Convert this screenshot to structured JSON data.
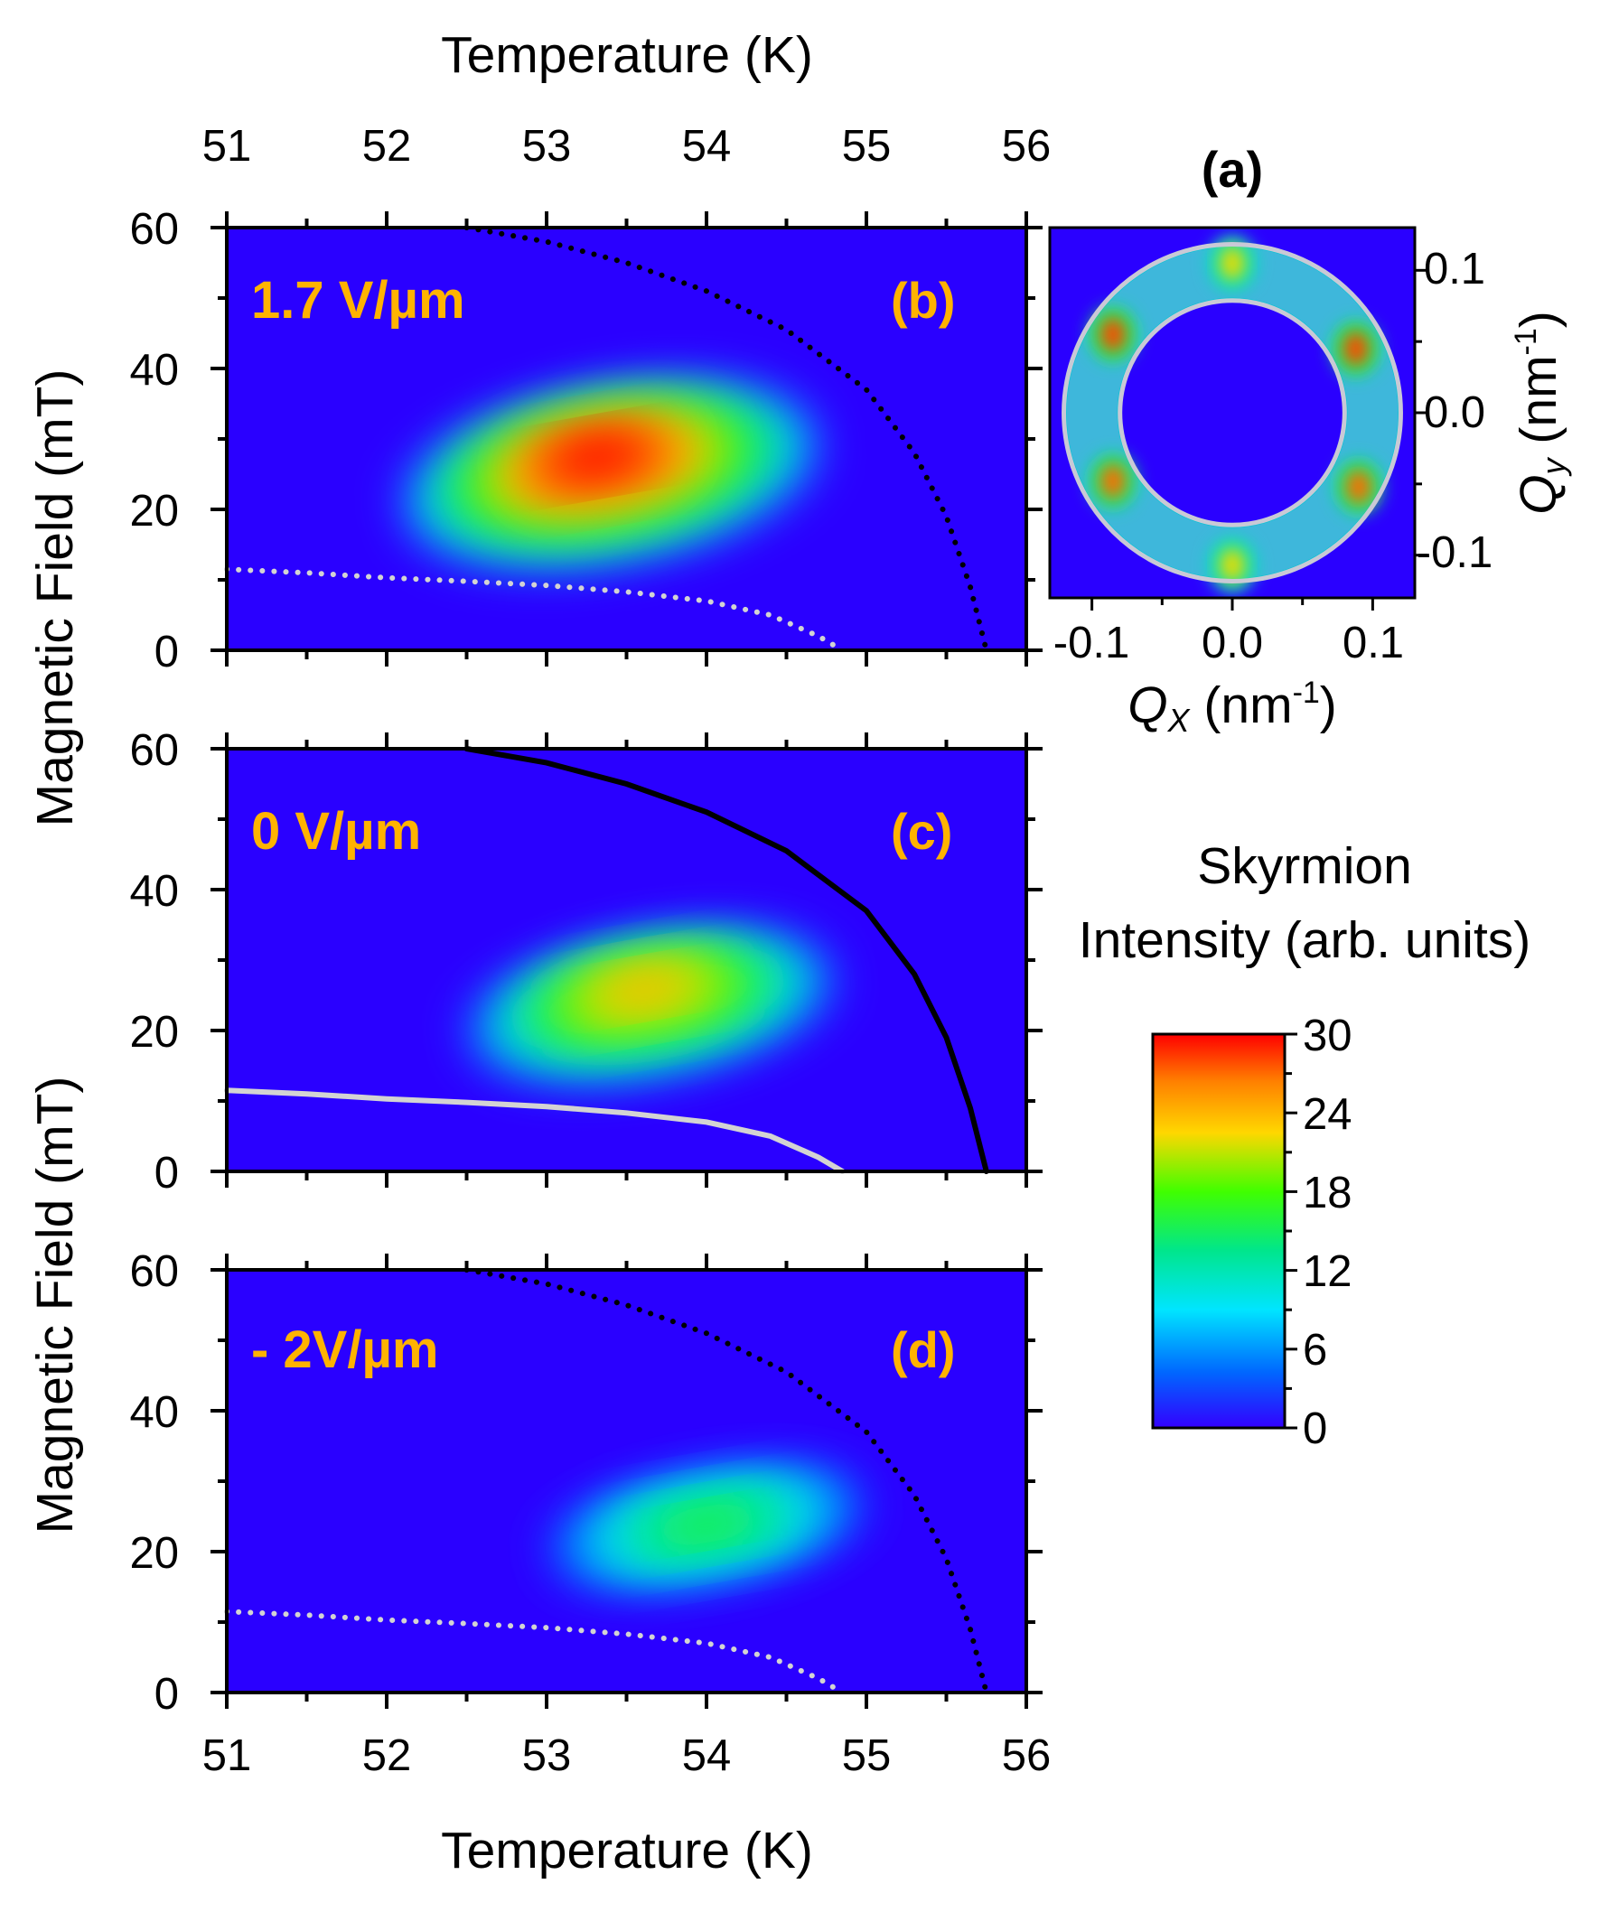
{
  "figure": {
    "top_axis_title": "Temperature (K)",
    "bottom_axis_title": "Temperature (K)",
    "left_axis_title_upper": "Magnetic Field (mT)",
    "left_axis_title_lower": "Magnetic Field (mT)",
    "label_color": "#FFB300",
    "background_color": "#2A00FF"
  },
  "chart_data": [
    {
      "id": "b",
      "type": "heatmap",
      "panel_tag": "(b)",
      "field_label": "1.7 V/µm",
      "xlabel": "Temperature (K)",
      "ylabel": "Magnetic Field (mT)",
      "xlim": [
        51,
        56
      ],
      "ylim": [
        0,
        60
      ],
      "xticks": [
        "51",
        "52",
        "53",
        "54",
        "55",
        "56"
      ],
      "yticks": [
        "0",
        "20",
        "40",
        "60"
      ],
      "skyrmion_pocket": {
        "t_min": 52.1,
        "t_max": 54.7,
        "h_min": 13,
        "h_max": 37,
        "peak_t": 53.3,
        "peak_h": 28,
        "peak_intensity": 30
      },
      "upper_boundary": {
        "style": "dotted",
        "color": "#000000",
        "points": [
          [
            52.5,
            60
          ],
          [
            53.0,
            58
          ],
          [
            53.5,
            55
          ],
          [
            54.0,
            51
          ],
          [
            54.5,
            45.5
          ],
          [
            55.0,
            37
          ],
          [
            55.3,
            28
          ],
          [
            55.5,
            19
          ],
          [
            55.65,
            9
          ],
          [
            55.75,
            0
          ]
        ]
      },
      "lower_boundary": {
        "style": "dotted",
        "color": "#D3D3D3",
        "points": [
          [
            51.0,
            11.5
          ],
          [
            51.5,
            11
          ],
          [
            52.0,
            10.3
          ],
          [
            52.5,
            9.8
          ],
          [
            53.0,
            9.2
          ],
          [
            53.5,
            8.3
          ],
          [
            54.0,
            7
          ],
          [
            54.4,
            5
          ],
          [
            54.7,
            2
          ],
          [
            54.85,
            0
          ]
        ]
      }
    },
    {
      "id": "c",
      "type": "heatmap",
      "panel_tag": "(c)",
      "field_label": "0 V/µm",
      "xlabel": "Temperature (K)",
      "ylabel": "Magnetic Field (mT)",
      "xlim": [
        51,
        56
      ],
      "ylim": [
        0,
        60
      ],
      "xticks": [
        "51",
        "52",
        "53",
        "54",
        "55",
        "56"
      ],
      "yticks": [
        "0",
        "20",
        "40",
        "60"
      ],
      "skyrmion_pocket": {
        "t_min": 52.5,
        "t_max": 54.8,
        "h_min": 14,
        "h_max": 33,
        "peak_t": 53.6,
        "peak_h": 26.5,
        "peak_intensity": 24
      },
      "upper_boundary": {
        "style": "solid",
        "color": "#000000",
        "points": [
          [
            52.5,
            60
          ],
          [
            53.0,
            58
          ],
          [
            53.5,
            55
          ],
          [
            54.0,
            51
          ],
          [
            54.5,
            45.5
          ],
          [
            55.0,
            37
          ],
          [
            55.3,
            28
          ],
          [
            55.5,
            19
          ],
          [
            55.65,
            9
          ],
          [
            55.75,
            0
          ]
        ]
      },
      "lower_boundary": {
        "style": "solid",
        "color": "#D3D3D3",
        "points": [
          [
            51.0,
            11.5
          ],
          [
            51.5,
            11
          ],
          [
            52.0,
            10.3
          ],
          [
            52.5,
            9.8
          ],
          [
            53.0,
            9.2
          ],
          [
            53.5,
            8.3
          ],
          [
            54.0,
            7
          ],
          [
            54.4,
            5
          ],
          [
            54.7,
            2
          ],
          [
            54.85,
            0
          ]
        ]
      }
    },
    {
      "id": "d",
      "type": "heatmap",
      "panel_tag": "(d)",
      "field_label": "- 2V/µm",
      "xlabel": "Temperature (K)",
      "ylabel": "Magnetic Field (mT)",
      "xlim": [
        51,
        56
      ],
      "ylim": [
        0,
        60
      ],
      "xticks": [
        "51",
        "52",
        "53",
        "54",
        "55",
        "56"
      ],
      "yticks": [
        "0",
        "20",
        "40",
        "60"
      ],
      "skyrmion_pocket": {
        "t_min": 53.0,
        "t_max": 55.0,
        "h_min": 16,
        "h_max": 31,
        "peak_t": 54.0,
        "peak_h": 24,
        "peak_intensity": 16
      },
      "upper_boundary": {
        "style": "dotted",
        "color": "#000000",
        "points": [
          [
            52.5,
            60
          ],
          [
            53.0,
            58
          ],
          [
            53.5,
            55
          ],
          [
            54.0,
            51
          ],
          [
            54.5,
            45.5
          ],
          [
            55.0,
            37
          ],
          [
            55.3,
            28
          ],
          [
            55.5,
            19
          ],
          [
            55.65,
            9
          ],
          [
            55.75,
            0
          ]
        ]
      },
      "lower_boundary": {
        "style": "dotted",
        "color": "#D3D3D3",
        "points": [
          [
            51.0,
            11.5
          ],
          [
            51.5,
            11
          ],
          [
            52.0,
            10.3
          ],
          [
            52.5,
            9.8
          ],
          [
            53.0,
            9.2
          ],
          [
            53.5,
            8.3
          ],
          [
            54.0,
            7
          ],
          [
            54.4,
            5
          ],
          [
            54.7,
            2
          ],
          [
            54.85,
            0
          ]
        ]
      }
    },
    {
      "id": "a",
      "type": "heatmap",
      "panel_tag": "(a)",
      "xlabel_main": "Q",
      "xlabel_sub": "X",
      "xlabel_unit": " (nm",
      "xlabel_exp": "-1",
      "xlabel_close": ")",
      "ylabel_main": "Q",
      "ylabel_sub": "y",
      "ylabel_unit": " (nm",
      "ylabel_exp": "-1",
      "ylabel_close": ")",
      "xlim": [
        -0.13,
        0.13
      ],
      "ylim": [
        -0.13,
        0.13
      ],
      "xticks": [
        "-0.1",
        "0.0",
        "0.1"
      ],
      "yticks": [
        "0.1",
        "0.0",
        "-0.1"
      ],
      "ring_inner_radius": 0.08,
      "ring_outer_radius": 0.12,
      "bright_spots": [
        {
          "qx": -0.085,
          "qy": 0.055,
          "intensity": 28
        },
        {
          "qx": 0.088,
          "qy": 0.045,
          "intensity": 28
        },
        {
          "qx": -0.085,
          "qy": -0.048,
          "intensity": 27
        },
        {
          "qx": 0.09,
          "qy": -0.052,
          "intensity": 27
        },
        {
          "qx": 0.0,
          "qy": 0.105,
          "intensity": 22
        },
        {
          "qx": 0.0,
          "qy": -0.107,
          "intensity": 22
        }
      ]
    }
  ],
  "colorbar": {
    "title_line1": "Skyrmion",
    "title_line2": "Intensity (arb. units)",
    "min": 0,
    "max": 30,
    "ticks": [
      "0",
      "6",
      "12",
      "18",
      "24",
      "30"
    ]
  }
}
